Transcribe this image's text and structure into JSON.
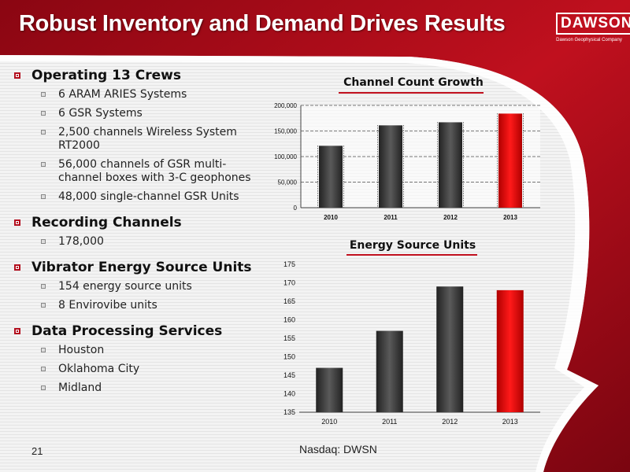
{
  "title": "Robust Inventory and Demand Drives Results",
  "logo": {
    "name": "DAWSON",
    "subtitle": "Dawson Geophysical Company"
  },
  "bullets": [
    {
      "label": "Operating 13 Crews",
      "items": [
        "6 ARAM ARIES Systems",
        "6 GSR Systems",
        "2,500 channels Wireless System RT2000",
        "56,000 channels of GSR multi-channel boxes with 3-C geophones",
        "48,000 single-channel GSR Units"
      ]
    },
    {
      "label": "Recording Channels",
      "items": [
        "178,000"
      ]
    },
    {
      "label": "Vibrator Energy Source Units",
      "items": [
        "154 energy source units",
        "8 Envirovibe units"
      ]
    },
    {
      "label": "Data Processing Services",
      "items": [
        "Houston",
        "Oklahoma City",
        "Midland"
      ]
    }
  ],
  "footer": {
    "page": "21",
    "ticker": "Nasdaq: DWSN"
  },
  "colors": {
    "accent": "#c0101e",
    "bar": "#3a3a3a",
    "highlight": "#e00000"
  },
  "chart_data": [
    {
      "type": "bar",
      "title": "Channel Count Growth",
      "categories": [
        "2010",
        "2011",
        "2012",
        "2013"
      ],
      "values": [
        121000,
        161000,
        167000,
        184000
      ],
      "yticks": [
        "0",
        "50,000",
        "100,000",
        "150,000",
        "200,000"
      ],
      "ylim": [
        0,
        200000
      ],
      "highlight_index": 3,
      "grid": true
    },
    {
      "type": "bar",
      "title": "Energy Source Units",
      "categories": [
        "2010",
        "2011",
        "2012",
        "2013"
      ],
      "values": [
        147,
        157,
        169,
        168
      ],
      "yticks": [
        "135",
        "140",
        "145",
        "150",
        "155",
        "160",
        "165",
        "170",
        "175"
      ],
      "ylim": [
        135,
        175
      ],
      "highlight_index": 3,
      "grid": false
    }
  ]
}
